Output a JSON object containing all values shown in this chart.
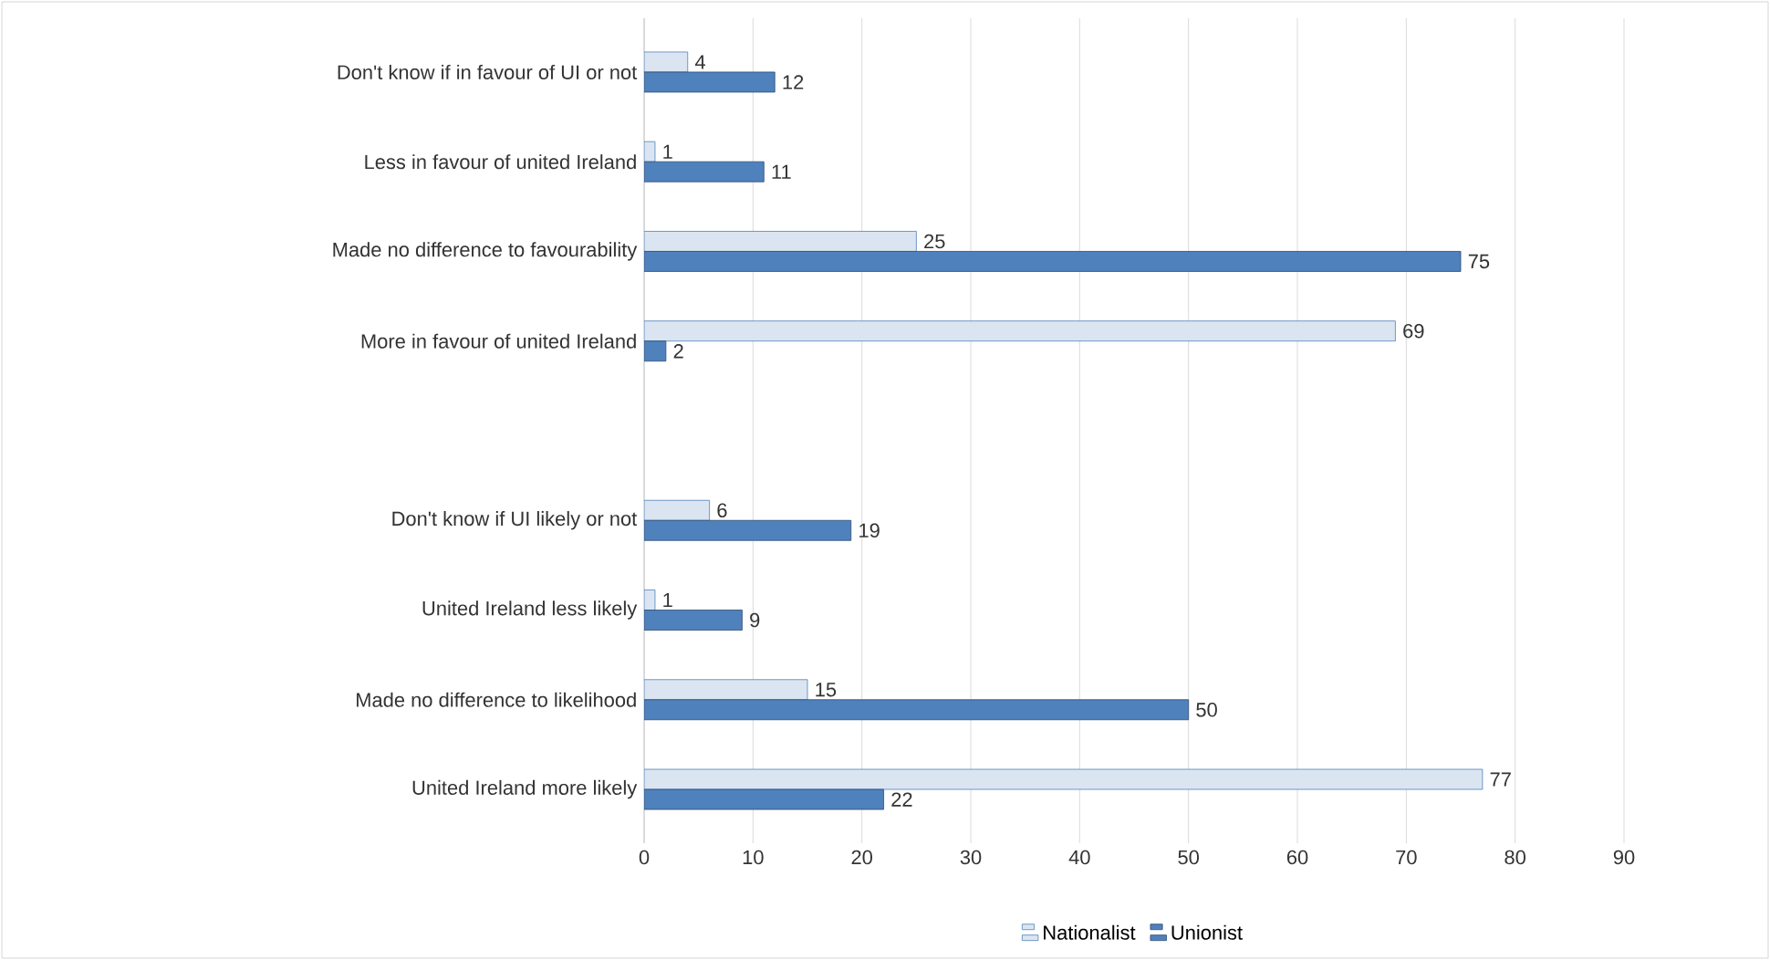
{
  "chart_data": {
    "type": "bar",
    "orientation": "horizontal",
    "categories": [
      "Don't know if in favour of UI or not",
      "Less in favour of united Ireland",
      "Made no difference to favourability",
      "More in favour of united Ireland",
      null,
      "Don't know if UI likely or not",
      "United Ireland less likely",
      "Made no difference to likelihood",
      "United Ireland more likely"
    ],
    "series": [
      {
        "name": "Nationalist",
        "color": "#dbe5f1",
        "values": [
          4,
          1,
          25,
          69,
          null,
          6,
          1,
          15,
          77
        ]
      },
      {
        "name": "Unionist",
        "color": "#4f81bd",
        "values": [
          12,
          11,
          75,
          2,
          null,
          19,
          9,
          50,
          22
        ]
      }
    ],
    "xlim": [
      0,
      90
    ],
    "xticks": [
      0,
      10,
      20,
      30,
      40,
      50,
      60,
      70,
      80,
      90
    ],
    "grid": "x",
    "legend": "bottom",
    "data_labels": true
  }
}
